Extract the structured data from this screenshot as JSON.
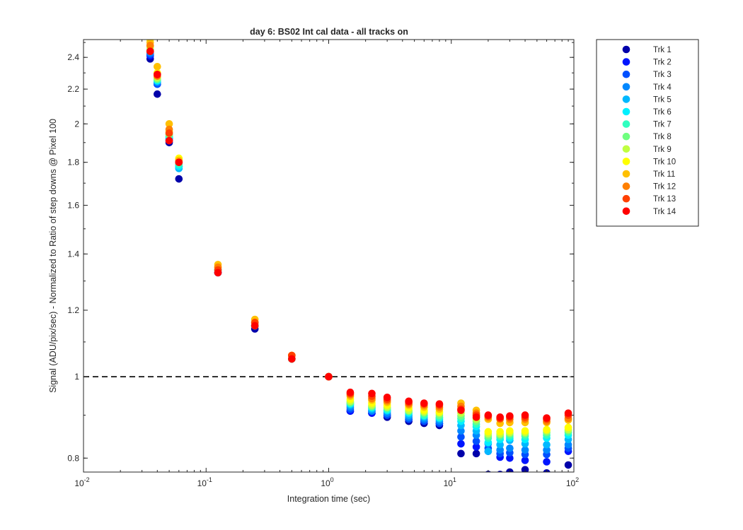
{
  "chart_data": {
    "type": "scatter",
    "title": "day 6: BS02   Int cal data - all tracks on",
    "xlabel": "Integration time (sec)",
    "ylabel": "Signal (ADU/pix/sec) - Normalized to Ratio of step downs @ Pixel 100",
    "x_scale": "log",
    "y_scale": "log",
    "xlim": [
      0.01,
      100
    ],
    "ylim": [
      0.77,
      2.52
    ],
    "grid": false,
    "legend_position": "outside-top-right",
    "reference_line": {
      "y": 1,
      "style": "dashed",
      "color": "#000000"
    },
    "x_ticks": [
      {
        "value": 0.01,
        "base": "10",
        "exp": "-2"
      },
      {
        "value": 0.1,
        "base": "10",
        "exp": "-1"
      },
      {
        "value": 1,
        "base": "10",
        "exp": "0"
      },
      {
        "value": 10,
        "base": "10",
        "exp": "1"
      },
      {
        "value": 100,
        "base": "10",
        "exp": "2"
      }
    ],
    "y_ticks": [
      {
        "value": 0.8,
        "label": "0.8"
      },
      {
        "value": 1.0,
        "label": "1"
      },
      {
        "value": 1.2,
        "label": "1.2"
      },
      {
        "value": 1.4,
        "label": "1.4"
      },
      {
        "value": 1.6,
        "label": "1.6"
      },
      {
        "value": 1.8,
        "label": "1.8"
      },
      {
        "value": 2.0,
        "label": "2"
      },
      {
        "value": 2.2,
        "label": "2.2"
      },
      {
        "value": 2.4,
        "label": "2.4"
      }
    ],
    "x": [
      0.035,
      0.04,
      0.05,
      0.06,
      0.125,
      0.25,
      0.5,
      1,
      1.5,
      2.25,
      3,
      4.5,
      6,
      8,
      12,
      16,
      20,
      25,
      30,
      40,
      60,
      90
    ],
    "series": [
      {
        "name": "Trk 1",
        "color": "#0000aa",
        "values": [
          2.39,
          2.17,
          1.9,
          1.72,
          1.33,
          1.14,
          1.05,
          1.0,
          0.91,
          0.905,
          0.895,
          0.885,
          0.88,
          0.875,
          0.81,
          0.81,
          0.765,
          0.765,
          0.77,
          0.775,
          0.768,
          0.785
        ]
      },
      {
        "name": "Trk 2",
        "color": "#0015ff",
        "values": [
          2.41,
          2.23,
          1.91,
          1.78,
          1.33,
          1.15,
          1.05,
          1.0,
          0.91,
          0.905,
          0.9,
          0.89,
          0.885,
          0.88,
          0.832,
          0.825,
          0.815,
          0.802,
          0.8,
          0.795,
          0.792,
          0.815
        ]
      },
      {
        "name": "Trk 3",
        "color": "#0050ff",
        "values": [
          2.42,
          2.23,
          1.92,
          1.78,
          1.34,
          1.15,
          1.05,
          1.0,
          0.915,
          0.91,
          0.9,
          0.89,
          0.885,
          0.88,
          0.848,
          0.838,
          0.822,
          0.81,
          0.812,
          0.808,
          0.808,
          0.822
        ]
      },
      {
        "name": "Trk 4",
        "color": "#0088ff",
        "values": [
          2.43,
          2.24,
          1.92,
          1.78,
          1.34,
          1.15,
          1.05,
          1.0,
          0.92,
          0.91,
          0.905,
          0.895,
          0.89,
          0.885,
          0.862,
          0.852,
          0.832,
          0.818,
          0.822,
          0.818,
          0.818,
          0.83
        ]
      },
      {
        "name": "Trk 5",
        "color": "#00b8ff",
        "values": [
          2.44,
          2.25,
          1.93,
          1.77,
          1.34,
          1.15,
          1.05,
          1.0,
          0.925,
          0.915,
          0.91,
          0.9,
          0.895,
          0.89,
          0.875,
          0.862,
          0.815,
          0.83,
          0.84,
          0.832,
          0.83,
          0.842
        ]
      },
      {
        "name": "Trk 6",
        "color": "#00f0ff",
        "values": [
          2.44,
          2.25,
          1.93,
          1.78,
          1.34,
          1.15,
          1.05,
          1.0,
          0.928,
          0.918,
          0.912,
          0.905,
          0.898,
          0.893,
          0.885,
          0.872,
          0.835,
          0.842,
          0.845,
          0.842,
          0.845,
          0.852
        ]
      },
      {
        "name": "Trk 7",
        "color": "#30ffc0",
        "values": [
          2.45,
          2.26,
          1.94,
          1.79,
          1.34,
          1.15,
          1.05,
          1.0,
          0.93,
          0.92,
          0.915,
          0.908,
          0.9,
          0.895,
          0.892,
          0.878,
          0.845,
          0.848,
          0.85,
          0.85,
          0.852,
          0.858
        ]
      },
      {
        "name": "Trk 8",
        "color": "#70ff80",
        "values": [
          2.45,
          2.26,
          1.94,
          1.8,
          1.34,
          1.15,
          1.05,
          1.0,
          0.932,
          0.922,
          0.918,
          0.91,
          0.905,
          0.9,
          0.898,
          0.885,
          0.85,
          0.852,
          0.855,
          0.855,
          0.858,
          0.862
        ]
      },
      {
        "name": "Trk 9",
        "color": "#c0ff40",
        "values": [
          2.47,
          2.27,
          1.95,
          1.81,
          1.35,
          1.16,
          1.05,
          1.0,
          0.935,
          0.925,
          0.92,
          0.912,
          0.908,
          0.905,
          0.905,
          0.89,
          0.855,
          0.855,
          0.858,
          0.858,
          0.862,
          0.865
        ]
      },
      {
        "name": "Trk 10",
        "color": "#ffff00",
        "values": [
          2.52,
          2.3,
          1.96,
          1.82,
          1.35,
          1.16,
          1.06,
          1.0,
          0.94,
          0.93,
          0.925,
          0.918,
          0.912,
          0.908,
          0.915,
          0.9,
          0.86,
          0.86,
          0.862,
          0.862,
          0.865,
          0.87
        ]
      },
      {
        "name": "Trk 11",
        "color": "#ffc000",
        "values": [
          2.5,
          2.34,
          2.0,
          1.81,
          1.36,
          1.17,
          1.06,
          1.0,
          0.948,
          0.938,
          0.932,
          0.925,
          0.92,
          0.915,
          0.93,
          0.912,
          0.89,
          0.88,
          0.882,
          0.882,
          0.882,
          0.888
        ]
      },
      {
        "name": "Trk 12",
        "color": "#ff8000",
        "values": [
          2.48,
          2.28,
          1.97,
          1.8,
          1.35,
          1.16,
          1.06,
          1.0,
          0.952,
          0.942,
          0.936,
          0.928,
          0.925,
          0.92,
          0.922,
          0.905,
          0.895,
          0.89,
          0.89,
          0.89,
          0.885,
          0.892
        ]
      },
      {
        "name": "Trk 13",
        "color": "#ff4000",
        "values": [
          2.44,
          2.29,
          1.95,
          1.8,
          1.34,
          1.16,
          1.06,
          1.0,
          0.955,
          0.948,
          0.94,
          0.932,
          0.928,
          0.925,
          0.915,
          0.9,
          0.898,
          0.892,
          0.895,
          0.895,
          0.89,
          0.9
        ]
      },
      {
        "name": "Trk 14",
        "color": "#ff0000",
        "values": [
          2.44,
          2.29,
          1.91,
          1.8,
          1.33,
          1.15,
          1.05,
          1.0,
          0.958,
          0.955,
          0.945,
          0.935,
          0.93,
          0.928,
          0.912,
          0.895,
          0.9,
          0.895,
          0.898,
          0.9,
          0.893,
          0.905
        ]
      }
    ]
  }
}
